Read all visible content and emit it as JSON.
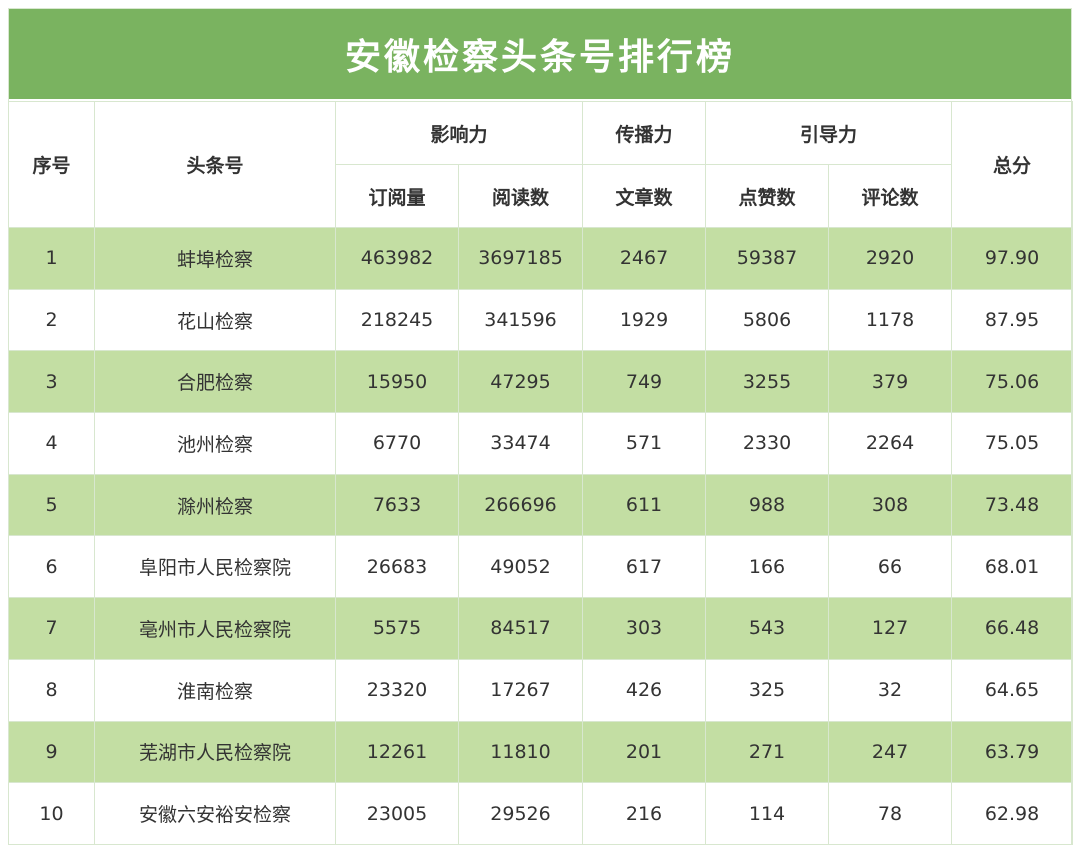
{
  "title": "安徽检察头条号排行榜",
  "colors": {
    "header_green": "#7ab360",
    "row_green": "#c3dea3",
    "row_white": "#ffffff",
    "text": "#333333"
  },
  "headers": {
    "rank": "序号",
    "account": "头条号",
    "influence": "影响力",
    "spread": "传播力",
    "guidance": "引导力",
    "total": "总分",
    "subscriptions": "订阅量",
    "reads": "阅读数",
    "articles": "文章数",
    "likes": "点赞数",
    "comments": "评论数"
  },
  "rows": [
    {
      "rank": "1",
      "name": "蚌埠检察",
      "subscriptions": "463982",
      "reads": "3697185",
      "articles": "2467",
      "likes": "59387",
      "comments": "2920",
      "total": "97.90"
    },
    {
      "rank": "2",
      "name": "花山检察",
      "subscriptions": "218245",
      "reads": "341596",
      "articles": "1929",
      "likes": "5806",
      "comments": "1178",
      "total": "87.95"
    },
    {
      "rank": "3",
      "name": "合肥检察",
      "subscriptions": "15950",
      "reads": "47295",
      "articles": "749",
      "likes": "3255",
      "comments": "379",
      "total": "75.06"
    },
    {
      "rank": "4",
      "name": "池州检察",
      "subscriptions": "6770",
      "reads": "33474",
      "articles": "571",
      "likes": "2330",
      "comments": "2264",
      "total": "75.05"
    },
    {
      "rank": "5",
      "name": "滁州检察",
      "subscriptions": "7633",
      "reads": "266696",
      "articles": "611",
      "likes": "988",
      "comments": "308",
      "total": "73.48"
    },
    {
      "rank": "6",
      "name": "阜阳市人民检察院",
      "subscriptions": "26683",
      "reads": "49052",
      "articles": "617",
      "likes": "166",
      "comments": "66",
      "total": "68.01"
    },
    {
      "rank": "7",
      "name": "亳州市人民检察院",
      "subscriptions": "5575",
      "reads": "84517",
      "articles": "303",
      "likes": "543",
      "comments": "127",
      "total": "66.48"
    },
    {
      "rank": "8",
      "name": "淮南检察",
      "subscriptions": "23320",
      "reads": "17267",
      "articles": "426",
      "likes": "325",
      "comments": "32",
      "total": "64.65"
    },
    {
      "rank": "9",
      "name": "芜湖市人民检察院",
      "subscriptions": "12261",
      "reads": "11810",
      "articles": "201",
      "likes": "271",
      "comments": "247",
      "total": "63.79"
    },
    {
      "rank": "10",
      "name": "安徽六安裕安检察",
      "subscriptions": "23005",
      "reads": "29526",
      "articles": "216",
      "likes": "114",
      "comments": "78",
      "total": "62.98"
    }
  ]
}
